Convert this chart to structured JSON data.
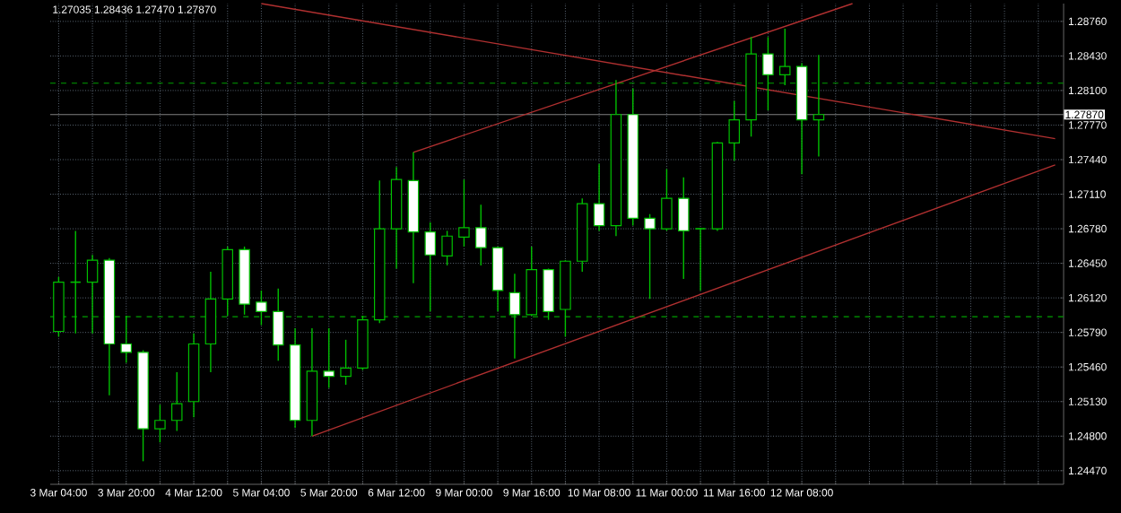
{
  "chart_data": {
    "type": "candlestick",
    "annotations": [
      "1.27035 1.28436 1.27470 1.27870"
    ],
    "categories": [
      "3 Mar 04:00",
      null,
      null,
      null,
      "3 Mar 20:00",
      null,
      null,
      null,
      "4 Mar 12:00",
      null,
      null,
      null,
      "5 Mar 04:00",
      null,
      null,
      null,
      "5 Mar 20:00",
      null,
      null,
      null,
      "6 Mar 12:00",
      null,
      null,
      null,
      "9 Mar 00:00",
      null,
      null,
      null,
      "9 Mar 16:00",
      null,
      null,
      null,
      "10 Mar 08:00",
      null,
      null,
      null,
      "11 Mar 00:00",
      null,
      null,
      null,
      "11 Mar 16:00",
      null,
      null,
      null,
      "12 Mar 08:00",
      null,
      null,
      null,
      null,
      null,
      null,
      null,
      null,
      null,
      null,
      null,
      null,
      null,
      null,
      null
    ],
    "ohlc": [
      [
        1.258,
        1.2632,
        1.2575,
        1.2627
      ],
      [
        1.2627,
        1.2676,
        1.2578,
        1.2627
      ],
      [
        1.2627,
        1.2653,
        1.2578,
        1.2648
      ],
      [
        1.2648,
        1.265,
        1.2519,
        1.2568
      ],
      [
        1.2568,
        1.2595,
        1.255,
        1.256
      ],
      [
        1.256,
        1.2562,
        1.2456,
        1.2487
      ],
      [
        1.2487,
        1.251,
        1.2474,
        1.2495
      ],
      [
        1.2495,
        1.2541,
        1.2485,
        1.2511
      ],
      [
        1.2513,
        1.2578,
        1.2498,
        1.2568
      ],
      [
        1.2568,
        1.2637,
        1.2541,
        1.2611
      ],
      [
        1.2611,
        1.2661,
        1.2595,
        1.2658
      ],
      [
        1.2658,
        1.2661,
        1.2596,
        1.2606
      ],
      [
        1.2608,
        1.2619,
        1.2586,
        1.2599
      ],
      [
        1.2599,
        1.2621,
        1.2552,
        1.2567
      ],
      [
        1.2567,
        1.2583,
        1.2488,
        1.2495
      ],
      [
        1.2495,
        1.2583,
        1.248,
        1.2542
      ],
      [
        1.2542,
        1.2583,
        1.2526,
        1.2537
      ],
      [
        1.2537,
        1.2572,
        1.2529,
        1.2545
      ],
      [
        1.2545,
        1.2595,
        1.2543,
        1.2591
      ],
      [
        1.2591,
        1.2724,
        1.2588,
        1.2678
      ],
      [
        1.2678,
        1.2737,
        1.264,
        1.2725
      ],
      [
        1.2724,
        1.2751,
        1.2626,
        1.2675
      ],
      [
        1.2675,
        1.2684,
        1.2599,
        1.2653
      ],
      [
        1.2652,
        1.2676,
        1.2643,
        1.2671
      ],
      [
        1.267,
        1.2725,
        1.2661,
        1.2679
      ],
      [
        1.2679,
        1.2701,
        1.2643,
        1.266
      ],
      [
        1.266,
        1.2661,
        1.2599,
        1.2619
      ],
      [
        1.2617,
        1.2635,
        1.2554,
        1.2596
      ],
      [
        1.2596,
        1.2661,
        1.2595,
        1.2639
      ],
      [
        1.2639,
        1.264,
        1.2591,
        1.2599
      ],
      [
        1.2601,
        1.2648,
        1.2575,
        1.2647
      ],
      [
        1.2647,
        1.2707,
        1.2637,
        1.2702
      ],
      [
        1.2702,
        1.274,
        1.2676,
        1.2681
      ],
      [
        1.2681,
        1.282,
        1.2671,
        1.2787
      ],
      [
        1.2787,
        1.2812,
        1.2681,
        1.2688
      ],
      [
        1.2688,
        1.2692,
        1.2611,
        1.2678
      ],
      [
        1.2678,
        1.2735,
        1.2676,
        1.2707
      ],
      [
        1.2707,
        1.2727,
        1.263,
        1.2676
      ],
      [
        1.2678,
        1.2679,
        1.2619,
        1.2678
      ],
      [
        1.2678,
        1.2761,
        1.2676,
        1.276
      ],
      [
        1.276,
        1.28,
        1.2743,
        1.2782
      ],
      [
        1.2782,
        1.2861,
        1.2766,
        1.2845
      ],
      [
        1.2845,
        1.2861,
        1.2791,
        1.2825
      ],
      [
        1.2825,
        1.2869,
        1.2815,
        1.2833
      ],
      [
        1.2833,
        1.2836,
        1.273,
        1.2782
      ],
      [
        1.2782,
        1.2844,
        1.2747,
        1.2787
      ],
      null,
      null,
      null,
      null,
      null,
      null,
      null,
      null,
      null,
      null,
      null,
      null,
      null,
      null
    ],
    "color": "#00c000",
    "series": [
      {
        "type": "line",
        "color": "#b03030",
        "values": [
          null,
          null,
          null,
          null,
          null,
          null,
          null,
          null,
          null,
          null,
          null,
          null,
          1.2893,
          null,
          null,
          null,
          null,
          null,
          null,
          null,
          null,
          null,
          null,
          null,
          null,
          null,
          null,
          null,
          null,
          null,
          null,
          null,
          null,
          null,
          null,
          null,
          null,
          null,
          null,
          null,
          null,
          null,
          null,
          null,
          null,
          null,
          null,
          null,
          null,
          null,
          null,
          null,
          null,
          null,
          null,
          null,
          null,
          null,
          null,
          1.2764
        ]
      },
      {
        "type": "line",
        "color": "#b03030",
        "values": [
          null,
          null,
          null,
          null,
          null,
          null,
          null,
          null,
          null,
          null,
          null,
          null,
          null,
          null,
          null,
          null,
          null,
          null,
          null,
          null,
          null,
          1.2751,
          null,
          null,
          null,
          null,
          null,
          null,
          null,
          null,
          null,
          null,
          null,
          null,
          null,
          null,
          null,
          null,
          null,
          null,
          null,
          null,
          null,
          null,
          null,
          null,
          null,
          1.2893,
          null,
          null,
          null,
          null,
          null,
          null,
          null,
          null,
          null,
          null,
          null,
          null
        ]
      },
      {
        "type": "line",
        "color": "#b03030",
        "values": [
          null,
          null,
          null,
          null,
          null,
          null,
          null,
          null,
          null,
          null,
          null,
          null,
          null,
          null,
          null,
          1.248,
          null,
          null,
          null,
          null,
          null,
          null,
          null,
          null,
          null,
          null,
          null,
          null,
          null,
          null,
          null,
          null,
          null,
          null,
          null,
          null,
          null,
          null,
          null,
          null,
          null,
          null,
          null,
          null,
          null,
          null,
          null,
          null,
          null,
          null,
          null,
          null,
          null,
          null,
          null,
          null,
          null,
          null,
          null,
          1.2739
        ]
      }
    ],
    "ylim": [
      1.2434,
      1.2893
    ],
    "yticks": [
      {
        "value": 1.2447,
        "label": "1.24470"
      },
      {
        "value": 1.248,
        "label": "1.24800"
      },
      {
        "value": 1.2513,
        "label": "1.25130"
      },
      {
        "value": 1.2546,
        "label": "1.25460"
      },
      {
        "value": 1.2579,
        "label": "1.25790"
      },
      {
        "value": 1.2612,
        "label": "1.26120"
      },
      {
        "value": 1.2645,
        "label": "1.26450"
      },
      {
        "value": 1.2678,
        "label": "1.26780"
      },
      {
        "value": 1.2711,
        "label": "1.27110"
      },
      {
        "value": 1.2744,
        "label": "1.27440"
      },
      {
        "value": 1.2777,
        "label": "1.27770"
      },
      {
        "value": 1.281,
        "label": "1.28100"
      },
      {
        "value": 1.2843,
        "label": "1.28430"
      },
      {
        "value": 1.2876,
        "label": "1.28760"
      }
    ],
    "ref_lines": [
      {
        "axis": "y",
        "value": 1.2787,
        "label": "1.27870",
        "color": "#808080",
        "line_style": "solid"
      },
      {
        "axis": "y",
        "value": 1.2817,
        "color": "#00a000",
        "line_style": "dashed"
      },
      {
        "axis": "y",
        "value": 1.2594,
        "color": "#00a000",
        "line_style": "dashed"
      }
    ],
    "grid": true
  }
}
